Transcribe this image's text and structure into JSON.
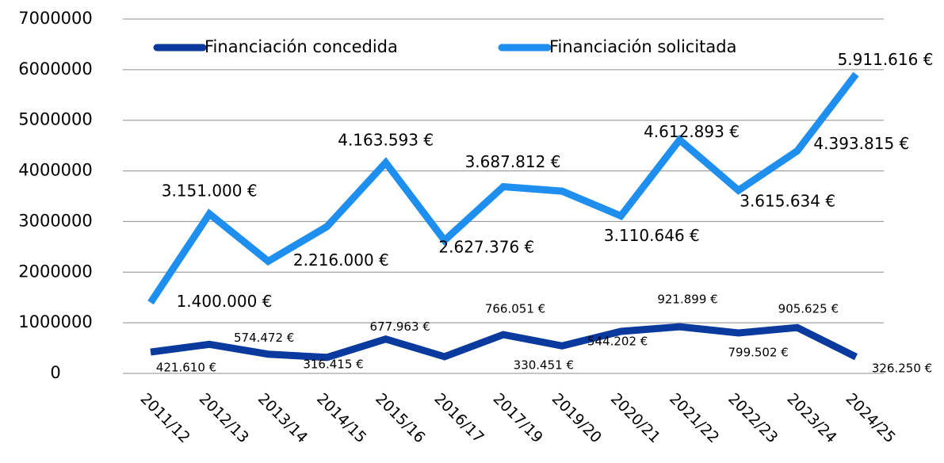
{
  "chart_data": {
    "type": "line",
    "categories": [
      "2011/12",
      "2012/13",
      "2013/14",
      "2014/15",
      "2015/16",
      "2016/17",
      "2017/19",
      "2019/20",
      "2020/21",
      "2021/22",
      "2022/23",
      "2023/24",
      "2024/25"
    ],
    "series": [
      {
        "name": "Financiación concedida",
        "color": "#0a3a9e",
        "values": [
          421610,
          574472,
          380000,
          316415,
          677963,
          330451,
          766051,
          544202,
          830000,
          921899,
          799502,
          905625,
          326250
        ],
        "value_labels": [
          "421.610 €",
          "574.472 €",
          null,
          "316.415 €",
          "677.963 €",
          "330.451 €",
          "766.051 €",
          "544.202 €",
          null,
          "921.899 €",
          "799.502 €",
          "905.625 €",
          "326.250 €"
        ]
      },
      {
        "name": "Financiación solicitada",
        "color": "#1e8fef",
        "values": [
          1400000,
          3151000,
          2216000,
          2900000,
          4163593,
          2627376,
          3687812,
          3600000,
          3110646,
          4612893,
          3615634,
          4393815,
          5911616
        ],
        "value_labels": [
          "1.400.000 €",
          "3.151.000 €",
          "2.216.000 €",
          null,
          "4.163.593 €",
          "2.627.376 €",
          "3.687.812 €",
          null,
          "3.110.646 €",
          "4.612.893 €",
          "3.615.634 €",
          "4.393.815 €",
          "5.911.616 €"
        ]
      }
    ],
    "ylim": [
      0,
      7000000
    ],
    "yticks": [
      0,
      1000000,
      2000000,
      3000000,
      4000000,
      5000000,
      6000000,
      7000000
    ],
    "grid": true,
    "legend": "top"
  }
}
